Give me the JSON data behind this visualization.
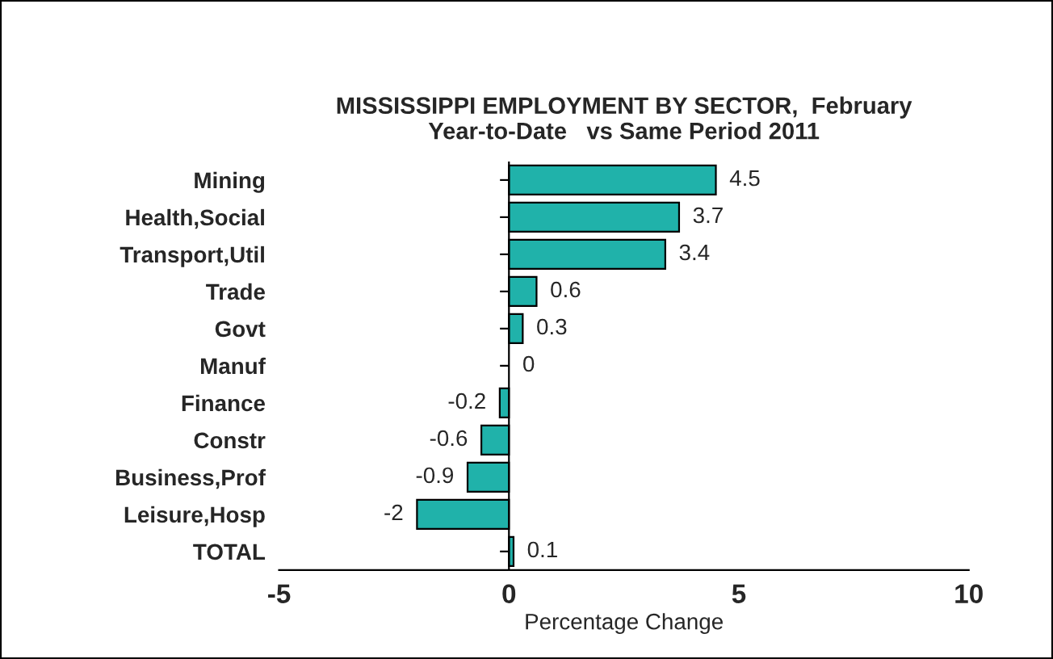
{
  "chart_data": {
    "type": "bar",
    "orientation": "horizontal",
    "title": "MISSISSIPPI EMPLOYMENT BY SECTOR,  February\nYear-to-Date   vs Same Period 2011",
    "xlabel": "Percentage Change",
    "categories": [
      "Mining",
      "Health,Social",
      "Transport,Util",
      "Trade",
      "Govt",
      "Manuf",
      "Finance",
      "Constr",
      "Business,Prof",
      "Leisure,Hosp",
      "TOTAL"
    ],
    "values": [
      4.5,
      3.7,
      3.4,
      0.6,
      0.3,
      0,
      -0.2,
      -0.6,
      -0.9,
      -2,
      0.1
    ],
    "color": "#20b2aa",
    "xlim": [
      -5,
      10
    ],
    "xticks": [
      -5,
      0,
      5,
      10
    ],
    "data_labels": true,
    "ref_lines": [
      {
        "axis": "x",
        "value": 0,
        "color": "#000000"
      }
    ],
    "grid": false,
    "legend": false
  }
}
